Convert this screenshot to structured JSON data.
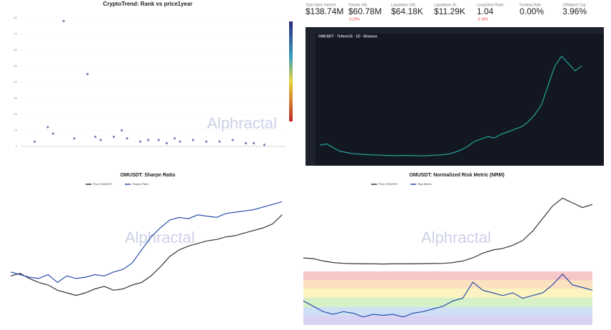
{
  "stats": [
    {
      "label": "Total Open Interest",
      "value": "$138.74M"
    },
    {
      "label": "Volume 24h",
      "value": "$60.78M",
      "change": "-3.23%"
    },
    {
      "label": "Liquidation 24h",
      "value": "$64.18K"
    },
    {
      "label": "Liquidation 1h",
      "value": "$11.29K"
    },
    {
      "label": "Long/Short Ratio",
      "value": "1.04",
      "change": "-3.14%"
    },
    {
      "label": "Funding Rate",
      "value": "0.00%"
    },
    {
      "label": "OI/Market Cap",
      "value": "3.96%"
    }
  ],
  "watermark": "Alphractal",
  "chart_data": [
    {
      "type": "scatter",
      "title": "CryptoTrend: Rank vs price1year",
      "color": "#8a7fb8",
      "x": [
        16,
        25,
        10,
        35,
        52,
        60,
        20,
        30,
        45,
        70,
        80,
        88,
        5,
        40,
        55,
        65,
        75,
        12,
        28,
        48,
        85,
        92,
        38,
        58
      ],
      "values": [
        78,
        45,
        12,
        6,
        4,
        3,
        5,
        4,
        3,
        3,
        4,
        2,
        3,
        5,
        2,
        4,
        3,
        8,
        6,
        4,
        2,
        1,
        10,
        5
      ],
      "xlim": [
        0,
        100
      ],
      "ylim": [
        0,
        80
      ],
      "yticks": [
        0,
        10,
        20,
        30,
        40,
        50,
        60,
        70,
        80
      ]
    },
    {
      "type": "line",
      "title": "OMUSDT · TetherUS · 1D · Binance",
      "color": "#26a69a",
      "values": [
        0.55,
        0.6,
        0.45,
        0.3,
        0.25,
        0.2,
        0.18,
        0.16,
        0.15,
        0.14,
        0.13,
        0.12,
        0.12,
        0.13,
        0.12,
        0.11,
        0.12,
        0.14,
        0.15,
        0.18,
        0.25,
        0.35,
        0.5,
        0.7,
        0.8,
        0.9,
        0.85,
        1.0,
        1.1,
        1.2,
        1.3,
        1.5,
        1.8,
        2.2,
        3.0,
        3.8,
        4.2,
        3.9,
        3.6,
        3.8
      ],
      "ylim": [
        0,
        4.6
      ]
    },
    {
      "type": "line",
      "title": "OMUSDT: Sharpe Ratio",
      "ylim": [
        0,
        100
      ],
      "series": [
        {
          "name": "Price OMUSDT",
          "color": "#333333",
          "values": [
            35,
            37,
            33,
            30,
            28,
            24,
            22,
            20,
            22,
            25,
            27,
            24,
            25,
            28,
            30,
            35,
            42,
            50,
            55,
            58,
            60,
            62,
            63,
            65,
            66,
            68,
            70,
            72,
            75,
            82
          ]
        },
        {
          "name": "Sharpe Ratio",
          "color": "#2b4fa8",
          "values": [
            38,
            36,
            34,
            33,
            36,
            30,
            35,
            33,
            34,
            36,
            35,
            38,
            40,
            45,
            55,
            65,
            72,
            78,
            80,
            79,
            82,
            81,
            80,
            83,
            84,
            85,
            86,
            88,
            90,
            92
          ]
        }
      ]
    },
    {
      "type": "line",
      "title": "OMUSDT: Normalized Risk Metric (NRM)",
      "ylim": [
        0,
        5
      ],
      "y2lim": [
        0,
        1
      ],
      "series": [
        {
          "name": "Price OMUSDT",
          "color": "#333333",
          "values": [
            0.5,
            0.45,
            0.3,
            0.2,
            0.15,
            0.13,
            0.12,
            0.12,
            0.11,
            0.12,
            0.12,
            0.12,
            0.13,
            0.14,
            0.15,
            0.2,
            0.3,
            0.5,
            0.8,
            1.0,
            1.1,
            1.3,
            1.6,
            2.2,
            3.0,
            3.8,
            4.3,
            4.0,
            3.7,
            3.9
          ]
        },
        {
          "name": "Risk Metric",
          "color": "#2b4fa8",
          "axis": "y2",
          "values": [
            0.45,
            0.35,
            0.25,
            0.2,
            0.25,
            0.22,
            0.15,
            0.2,
            0.18,
            0.2,
            0.15,
            0.22,
            0.25,
            0.3,
            0.35,
            0.45,
            0.5,
            0.8,
            0.65,
            0.6,
            0.55,
            0.6,
            0.5,
            0.55,
            0.6,
            0.75,
            0.95,
            0.75,
            0.7,
            0.65
          ]
        }
      ]
    }
  ]
}
